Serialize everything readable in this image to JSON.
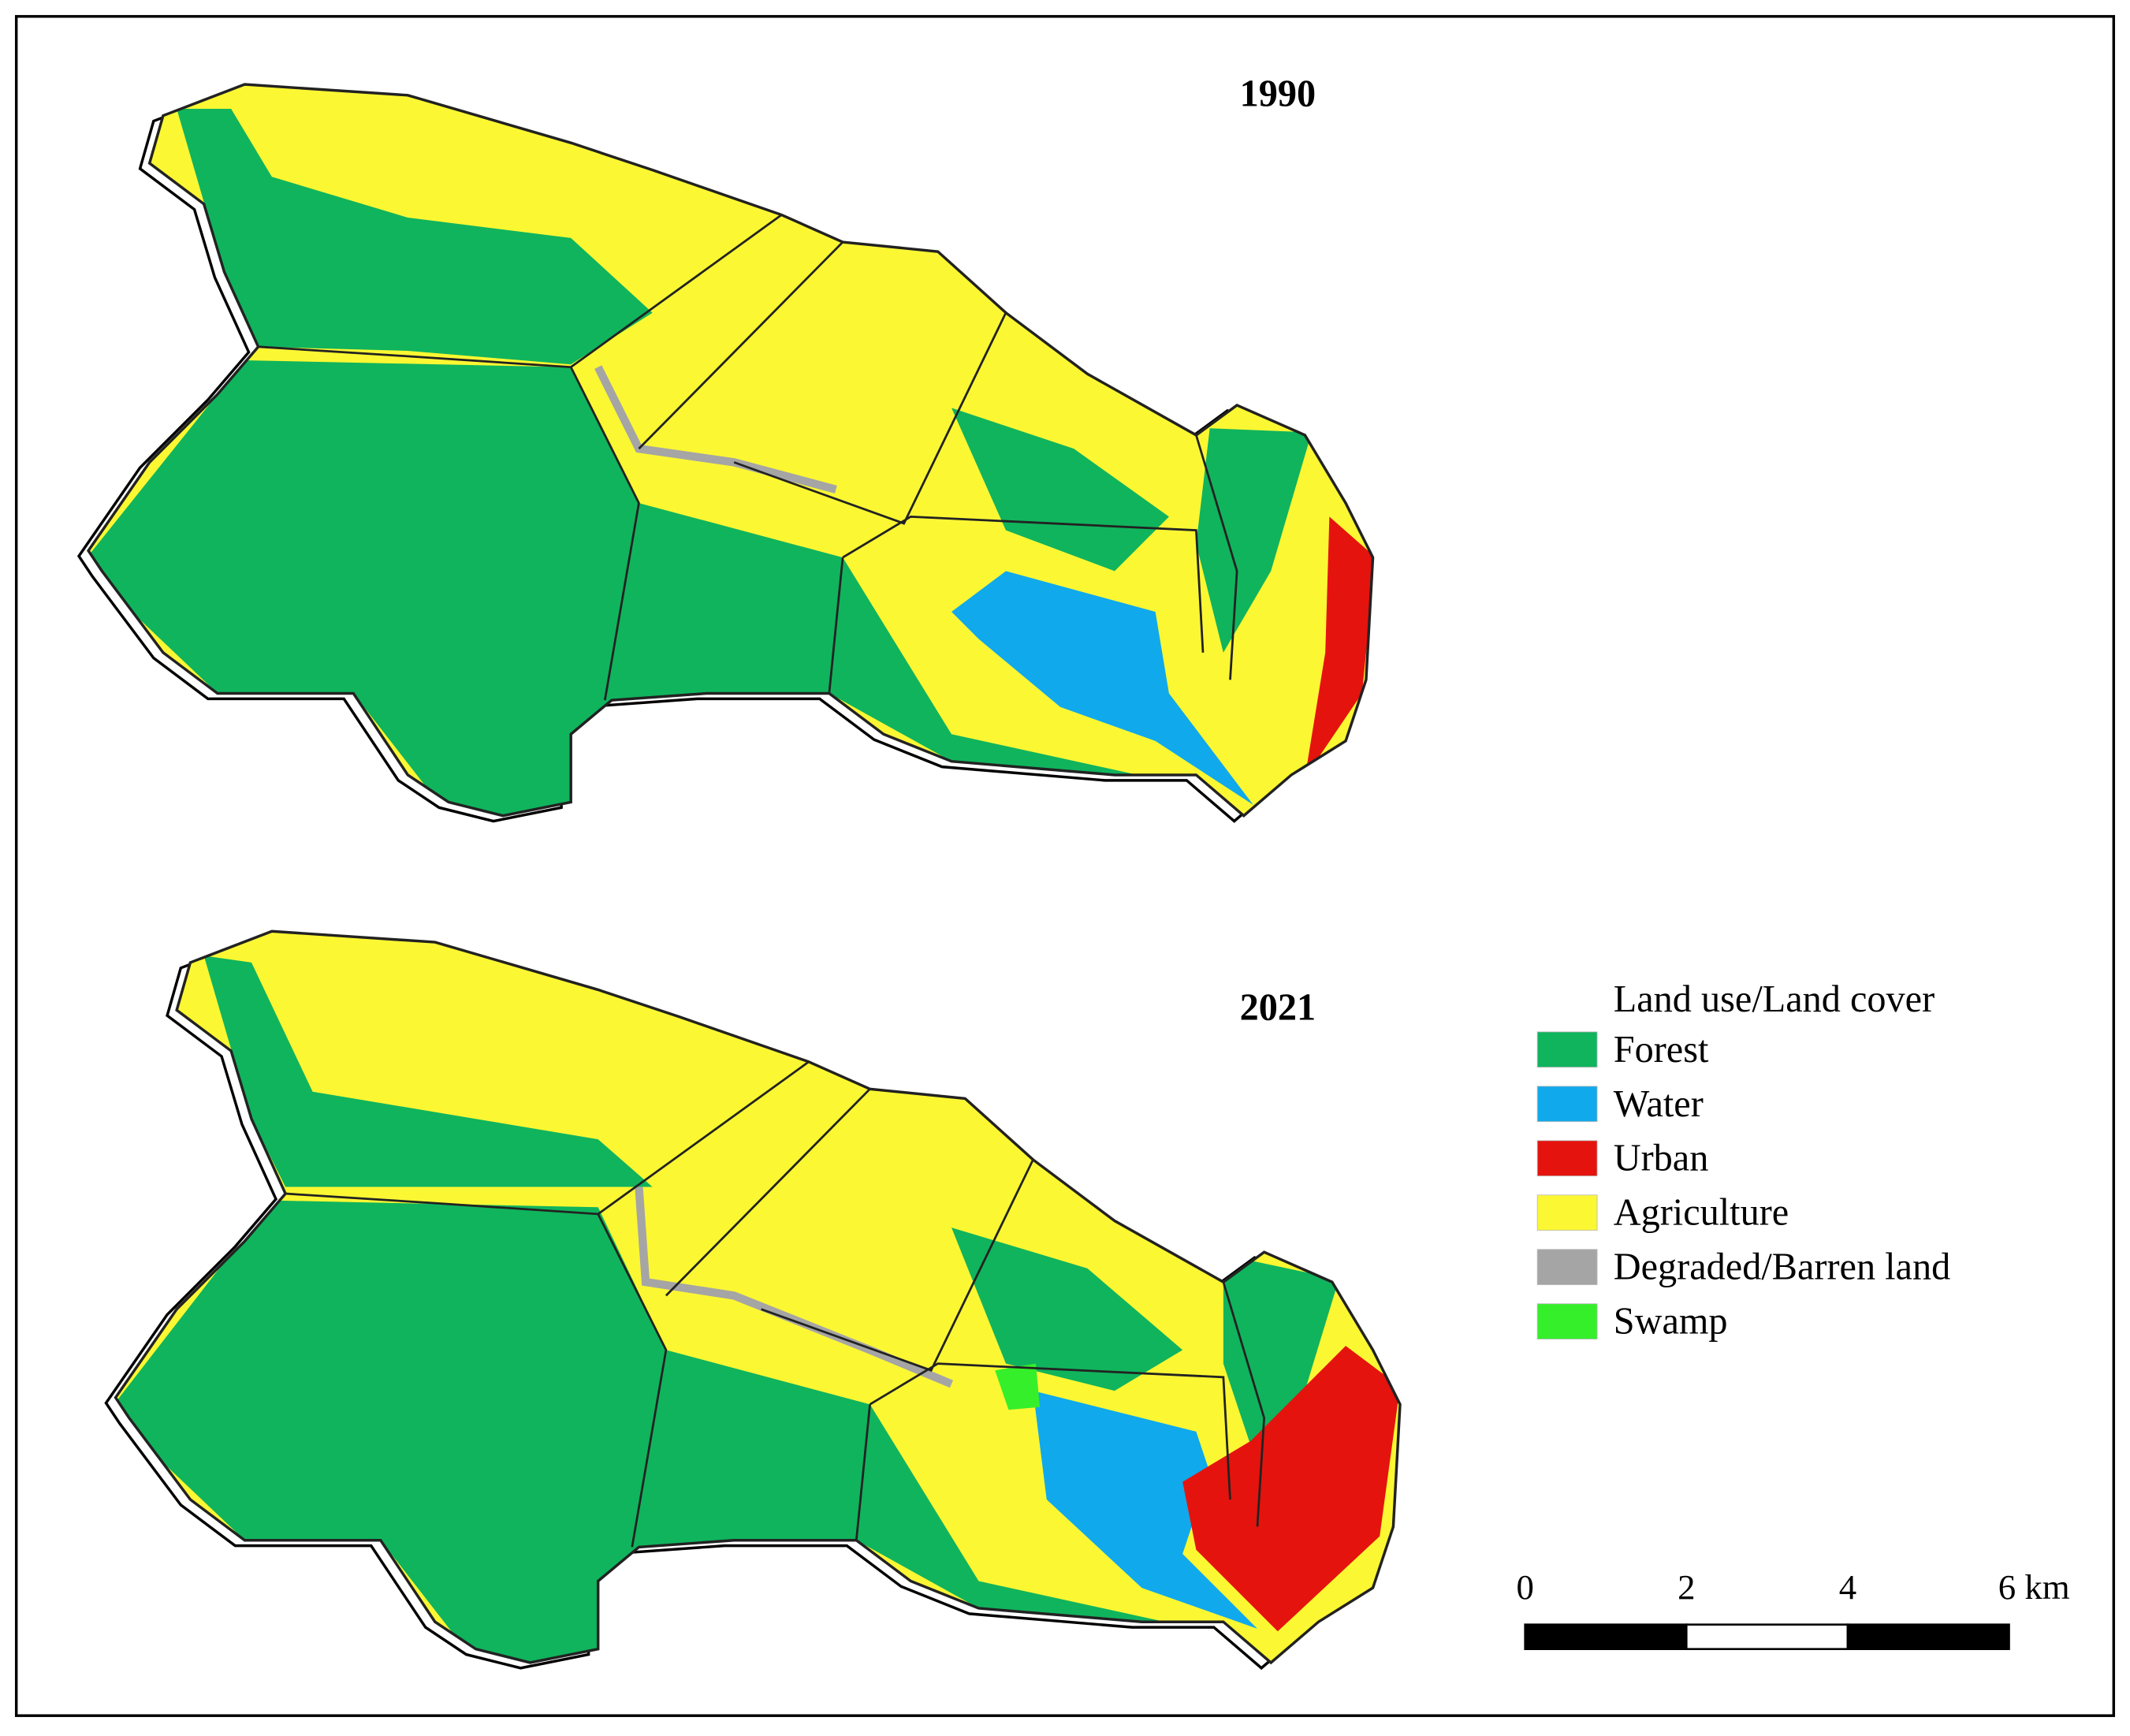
{
  "maps": [
    {
      "title": "1990"
    },
    {
      "title": "2021"
    }
  ],
  "legend": {
    "title": "Land use/Land cover",
    "items": [
      {
        "name": "Forest",
        "color": "#10b45d"
      },
      {
        "name": "Water",
        "color": "#10a9ec"
      },
      {
        "name": "Urban",
        "color": "#e5130d"
      },
      {
        "name": "Agriculture",
        "color": "#fbf733"
      },
      {
        "name": "Degraded/Barren land",
        "color": "#a5a5a5"
      },
      {
        "name": "Swamp",
        "color": "#35ef2b"
      }
    ]
  },
  "scale_bar": {
    "ticks": [
      0,
      2,
      4,
      {
        "value": 6,
        "label": "6 km"
      }
    ]
  }
}
